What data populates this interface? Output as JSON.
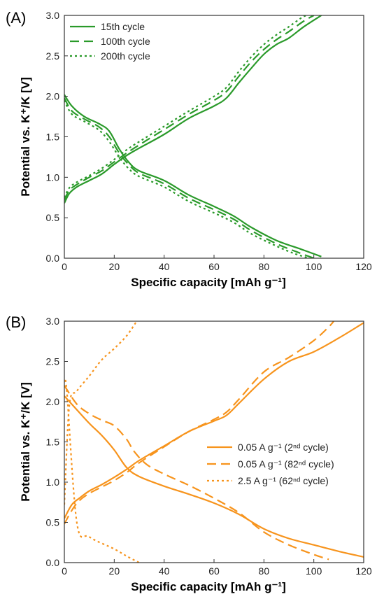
{
  "chart_data": [
    {
      "panel": "(A)",
      "type": "line",
      "xlabel": "Specific capacity [mAh g⁻¹]",
      "ylabel": "Potential vs. K⁺/K [V]",
      "xlim": [
        0,
        120
      ],
      "ylim": [
        0,
        3.0
      ],
      "xticks": [
        0,
        20,
        40,
        60,
        80,
        100,
        120
      ],
      "yticks": [
        0.0,
        0.5,
        1.0,
        1.5,
        2.0,
        2.5,
        3.0
      ],
      "legend_position": "top-left",
      "color": "#2a9a2a",
      "series": [
        {
          "name": "15th cycle",
          "style": "solid",
          "discharge": [
            [
              0,
              2.02
            ],
            [
              3,
              1.88
            ],
            [
              8,
              1.75
            ],
            [
              14,
              1.66
            ],
            [
              18,
              1.57
            ],
            [
              22,
              1.35
            ],
            [
              26,
              1.18
            ],
            [
              30,
              1.08
            ],
            [
              40,
              0.96
            ],
            [
              50,
              0.78
            ],
            [
              60,
              0.64
            ],
            [
              68,
              0.52
            ],
            [
              75,
              0.38
            ],
            [
              85,
              0.22
            ],
            [
              95,
              0.11
            ],
            [
              103,
              0.02
            ]
          ],
          "charge": [
            [
              0,
              0.68
            ],
            [
              2,
              0.8
            ],
            [
              5,
              0.88
            ],
            [
              10,
              0.96
            ],
            [
              15,
              1.04
            ],
            [
              20,
              1.16
            ],
            [
              25,
              1.27
            ],
            [
              30,
              1.36
            ],
            [
              40,
              1.53
            ],
            [
              50,
              1.73
            ],
            [
              60,
              1.88
            ],
            [
              65,
              1.98
            ],
            [
              70,
              2.17
            ],
            [
              75,
              2.35
            ],
            [
              80,
              2.52
            ],
            [
              85,
              2.64
            ],
            [
              90,
              2.72
            ],
            [
              96,
              2.86
            ],
            [
              103,
              3.0
            ]
          ]
        },
        {
          "name": "100th cycle",
          "style": "dashed",
          "discharge": [
            [
              0,
              1.98
            ],
            [
              3,
              1.82
            ],
            [
              8,
              1.72
            ],
            [
              14,
              1.62
            ],
            [
              18,
              1.5
            ],
            [
              22,
              1.3
            ],
            [
              26,
              1.15
            ],
            [
              30,
              1.05
            ],
            [
              40,
              0.92
            ],
            [
              50,
              0.74
            ],
            [
              60,
              0.6
            ],
            [
              68,
              0.48
            ],
            [
              75,
              0.34
            ],
            [
              85,
              0.18
            ],
            [
              93,
              0.08
            ],
            [
              100,
              0.0
            ]
          ],
          "charge": [
            [
              0,
              0.72
            ],
            [
              2,
              0.84
            ],
            [
              5,
              0.91
            ],
            [
              10,
              1.0
            ],
            [
              15,
              1.08
            ],
            [
              20,
              1.19
            ],
            [
              25,
              1.3
            ],
            [
              30,
              1.4
            ],
            [
              40,
              1.59
            ],
            [
              50,
              1.78
            ],
            [
              60,
              1.95
            ],
            [
              65,
              2.06
            ],
            [
              70,
              2.25
            ],
            [
              75,
              2.43
            ],
            [
              80,
              2.58
            ],
            [
              85,
              2.7
            ],
            [
              90,
              2.8
            ],
            [
              96,
              2.93
            ],
            [
              100,
              3.0
            ]
          ]
        },
        {
          "name": "200th cycle",
          "style": "dotted",
          "discharge": [
            [
              0,
              1.95
            ],
            [
              3,
              1.78
            ],
            [
              8,
              1.69
            ],
            [
              14,
              1.58
            ],
            [
              18,
              1.44
            ],
            [
              22,
              1.25
            ],
            [
              26,
              1.1
            ],
            [
              30,
              1.01
            ],
            [
              40,
              0.88
            ],
            [
              50,
              0.7
            ],
            [
              60,
              0.56
            ],
            [
              68,
              0.44
            ],
            [
              75,
              0.3
            ],
            [
              85,
              0.15
            ],
            [
              92,
              0.06
            ],
            [
              98,
              0.0
            ]
          ],
          "charge": [
            [
              0,
              0.75
            ],
            [
              2,
              0.87
            ],
            [
              5,
              0.94
            ],
            [
              10,
              1.02
            ],
            [
              15,
              1.11
            ],
            [
              20,
              1.22
            ],
            [
              25,
              1.34
            ],
            [
              30,
              1.44
            ],
            [
              40,
              1.63
            ],
            [
              50,
              1.82
            ],
            [
              60,
              2.0
            ],
            [
              65,
              2.11
            ],
            [
              70,
              2.31
            ],
            [
              75,
              2.49
            ],
            [
              80,
              2.64
            ],
            [
              85,
              2.76
            ],
            [
              90,
              2.86
            ],
            [
              95,
              2.97
            ],
            [
              97,
              3.0
            ]
          ]
        }
      ]
    },
    {
      "panel": "(B)",
      "type": "line",
      "xlabel": "Specific capacity [mAh g⁻¹]",
      "ylabel": "Potential vs. K⁺/K [V]",
      "xlim": [
        0,
        120
      ],
      "ylim": [
        0,
        3.0
      ],
      "xticks": [
        0,
        20,
        40,
        60,
        80,
        100,
        120
      ],
      "yticks": [
        0.0,
        0.5,
        1.0,
        1.5,
        2.0,
        2.5,
        3.0
      ],
      "legend_position": "center-right",
      "color": "#f7941d",
      "series": [
        {
          "name": "0.05 A g⁻¹ (2ⁿᵈ cycle)",
          "style": "solid",
          "discharge": [
            [
              0,
              2.07
            ],
            [
              5,
              1.9
            ],
            [
              10,
              1.73
            ],
            [
              15,
              1.58
            ],
            [
              20,
              1.4
            ],
            [
              25,
              1.18
            ],
            [
              30,
              1.07
            ],
            [
              40,
              0.95
            ],
            [
              50,
              0.85
            ],
            [
              60,
              0.74
            ],
            [
              70,
              0.6
            ],
            [
              80,
              0.42
            ],
            [
              90,
              0.3
            ],
            [
              100,
              0.22
            ],
            [
              110,
              0.14
            ],
            [
              120,
              0.07
            ]
          ],
          "charge": [
            [
              0,
              0.55
            ],
            [
              3,
              0.72
            ],
            [
              6,
              0.8
            ],
            [
              10,
              0.89
            ],
            [
              15,
              0.97
            ],
            [
              20,
              1.06
            ],
            [
              25,
              1.16
            ],
            [
              30,
              1.27
            ],
            [
              40,
              1.45
            ],
            [
              50,
              1.63
            ],
            [
              60,
              1.76
            ],
            [
              65,
              1.83
            ],
            [
              70,
              1.98
            ],
            [
              80,
              2.28
            ],
            [
              90,
              2.5
            ],
            [
              100,
              2.62
            ],
            [
              110,
              2.79
            ],
            [
              120,
              2.98
            ]
          ]
        },
        {
          "name": "0.05 A g⁻¹ (82ⁿᵈ cycle)",
          "style": "dashed",
          "discharge": [
            [
              0,
              2.2
            ],
            [
              5,
              1.97
            ],
            [
              10,
              1.85
            ],
            [
              15,
              1.77
            ],
            [
              20,
              1.7
            ],
            [
              25,
              1.53
            ],
            [
              28,
              1.38
            ],
            [
              33,
              1.22
            ],
            [
              40,
              1.1
            ],
            [
              50,
              0.96
            ],
            [
              60,
              0.8
            ],
            [
              70,
              0.62
            ],
            [
              80,
              0.38
            ],
            [
              90,
              0.22
            ],
            [
              100,
              0.1
            ],
            [
              106,
              0.04
            ]
          ],
          "charge": [
            [
              0,
              0.48
            ],
            [
              3,
              0.65
            ],
            [
              6,
              0.77
            ],
            [
              10,
              0.86
            ],
            [
              15,
              0.94
            ],
            [
              20,
              1.02
            ],
            [
              25,
              1.12
            ],
            [
              30,
              1.24
            ],
            [
              40,
              1.44
            ],
            [
              50,
              1.63
            ],
            [
              60,
              1.78
            ],
            [
              65,
              1.87
            ],
            [
              70,
              2.03
            ],
            [
              80,
              2.37
            ],
            [
              90,
              2.55
            ],
            [
              100,
              2.76
            ],
            [
              106,
              2.93
            ],
            [
              108,
              3.0
            ]
          ]
        },
        {
          "name": "2.5 A g⁻¹ (62ⁿᵈ cycle)",
          "style": "dotted",
          "discharge": [
            [
              0,
              2.25
            ],
            [
              1,
              2.12
            ],
            [
              5,
              0.5
            ],
            [
              10,
              0.32
            ],
            [
              20,
              0.17
            ],
            [
              25,
              0.08
            ],
            [
              30,
              0.0
            ]
          ],
          "charge": [
            [
              0,
              0.72
            ],
            [
              2,
              1.95
            ],
            [
              5,
              2.13
            ],
            [
              10,
              2.32
            ],
            [
              15,
              2.52
            ],
            [
              20,
              2.66
            ],
            [
              25,
              2.82
            ],
            [
              29,
              3.0
            ]
          ]
        }
      ]
    }
  ]
}
